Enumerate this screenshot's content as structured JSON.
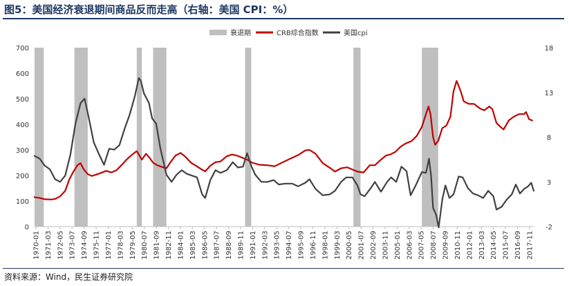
{
  "title": "图5：美国经济衰退期间商品反而走高（右轴：美国 CPI：%）",
  "source": "资料来源：Wind，民生证券研究院",
  "chart_data": {
    "type": "line",
    "left_axis": {
      "min": 0,
      "max": 700,
      "ticks": [
        "0",
        "100",
        "200",
        "300",
        "400",
        "500",
        "600",
        "700"
      ]
    },
    "right_axis": {
      "min": -2,
      "max": 18,
      "ticks": [
        "-2",
        "3",
        "8",
        "13",
        "18"
      ]
    },
    "x_ticks": [
      "1970-01",
      "1971-03",
      "1972-05",
      "1973-07",
      "1974-09",
      "1975-11",
      "1977-01",
      "1978-03",
      "1979-05",
      "1980-07",
      "1981-09",
      "1982-11",
      "1984-01",
      "1985-03",
      "1986-05",
      "1987-07",
      "1988-09",
      "1989-11",
      "1991-01",
      "1992-03",
      "1993-05",
      "1994-07",
      "1995-09",
      "1996-11",
      "1998-01",
      "1999-03",
      "2000-05",
      "2001-07",
      "2002-09",
      "2003-11",
      "2005-01",
      "2006-03",
      "2007-05",
      "2008-07",
      "2009-09",
      "2010-11",
      "2012-01",
      "2013-03",
      "2014-05",
      "2015-07",
      "2016-09",
      "2017-11"
    ],
    "x_range": [
      1970.0,
      2018.85
    ],
    "legend": [
      {
        "name": "衰退期",
        "color": "#bfbfbf",
        "kind": "bar"
      },
      {
        "name": "CRB综合指数",
        "color": "#c00000",
        "kind": "line"
      },
      {
        "name": "美国cpi",
        "color": "#404040",
        "kind": "line"
      }
    ],
    "recessions": [
      [
        1970.0,
        1970.9
      ],
      [
        1973.9,
        1975.2
      ],
      [
        1980.0,
        1980.5
      ],
      [
        1981.6,
        1982.9
      ],
      [
        1990.6,
        1991.2
      ],
      [
        2001.2,
        2001.9
      ],
      [
        2007.9,
        2009.5
      ]
    ],
    "series": [
      {
        "name": "CRB综合指数",
        "axis": "left",
        "color": "#c00000",
        "points": [
          [
            1970.0,
            115
          ],
          [
            1970.5,
            112
          ],
          [
            1971.0,
            107
          ],
          [
            1971.6,
            106
          ],
          [
            1972.0,
            108
          ],
          [
            1972.5,
            118
          ],
          [
            1973.0,
            140
          ],
          [
            1973.4,
            185
          ],
          [
            1973.8,
            215
          ],
          [
            1974.2,
            240
          ],
          [
            1974.5,
            248
          ],
          [
            1974.8,
            225
          ],
          [
            1975.2,
            205
          ],
          [
            1975.6,
            198
          ],
          [
            1976.0,
            203
          ],
          [
            1976.5,
            210
          ],
          [
            1977.0,
            218
          ],
          [
            1977.5,
            212
          ],
          [
            1978.0,
            220
          ],
          [
            1978.5,
            240
          ],
          [
            1979.0,
            262
          ],
          [
            1979.5,
            280
          ],
          [
            1980.0,
            295
          ],
          [
            1980.2,
            282
          ],
          [
            1980.5,
            262
          ],
          [
            1980.9,
            285
          ],
          [
            1981.2,
            272
          ],
          [
            1981.6,
            250
          ],
          [
            1982.0,
            240
          ],
          [
            1982.5,
            233
          ],
          [
            1982.9,
            228
          ],
          [
            1983.3,
            252
          ],
          [
            1983.8,
            278
          ],
          [
            1984.3,
            288
          ],
          [
            1984.8,
            272
          ],
          [
            1985.3,
            250
          ],
          [
            1985.8,
            238
          ],
          [
            1986.3,
            225
          ],
          [
            1986.7,
            216
          ],
          [
            1987.2,
            238
          ],
          [
            1987.7,
            252
          ],
          [
            1988.2,
            255
          ],
          [
            1988.8,
            275
          ],
          [
            1989.3,
            282
          ],
          [
            1989.8,
            278
          ],
          [
            1990.3,
            270
          ],
          [
            1990.8,
            262
          ],
          [
            1991.3,
            250
          ],
          [
            1992.0,
            242
          ],
          [
            1992.8,
            240
          ],
          [
            1993.5,
            236
          ],
          [
            1994.3,
            252
          ],
          [
            1995.0,
            265
          ],
          [
            1995.8,
            280
          ],
          [
            1996.5,
            298
          ],
          [
            1996.9,
            300
          ],
          [
            1997.5,
            285
          ],
          [
            1998.2,
            248
          ],
          [
            1998.9,
            230
          ],
          [
            1999.4,
            215
          ],
          [
            2000.0,
            228
          ],
          [
            2000.6,
            232
          ],
          [
            2001.0,
            225
          ],
          [
            2001.6,
            215
          ],
          [
            2002.2,
            212
          ],
          [
            2002.8,
            240
          ],
          [
            2003.3,
            240
          ],
          [
            2003.9,
            262
          ],
          [
            2004.4,
            278
          ],
          [
            2004.8,
            282
          ],
          [
            2005.3,
            292
          ],
          [
            2005.8,
            312
          ],
          [
            2006.3,
            325
          ],
          [
            2006.9,
            335
          ],
          [
            2007.4,
            355
          ],
          [
            2007.9,
            390
          ],
          [
            2008.3,
            440
          ],
          [
            2008.55,
            470
          ],
          [
            2008.75,
            440
          ],
          [
            2009.0,
            350
          ],
          [
            2009.2,
            320
          ],
          [
            2009.5,
            335
          ],
          [
            2009.9,
            385
          ],
          [
            2010.3,
            395
          ],
          [
            2010.7,
            430
          ],
          [
            2011.0,
            530
          ],
          [
            2011.3,
            570
          ],
          [
            2011.7,
            530
          ],
          [
            2012.0,
            490
          ],
          [
            2012.5,
            480
          ],
          [
            2013.0,
            480
          ],
          [
            2013.6,
            462
          ],
          [
            2014.0,
            455
          ],
          [
            2014.5,
            470
          ],
          [
            2014.8,
            460
          ],
          [
            2015.2,
            405
          ],
          [
            2015.6,
            390
          ],
          [
            2015.9,
            380
          ],
          [
            2016.4,
            415
          ],
          [
            2016.9,
            430
          ],
          [
            2017.4,
            440
          ],
          [
            2017.9,
            440
          ],
          [
            2018.1,
            448
          ],
          [
            2018.4,
            420
          ],
          [
            2018.7,
            415
          ]
        ]
      },
      {
        "name": "美国cpi",
        "axis": "right",
        "color": "#404040",
        "points": [
          [
            1970.0,
            5.9
          ],
          [
            1970.5,
            5.6
          ],
          [
            1971.0,
            4.8
          ],
          [
            1971.5,
            4.4
          ],
          [
            1972.0,
            3.3
          ],
          [
            1972.5,
            3.0
          ],
          [
            1973.0,
            3.7
          ],
          [
            1973.5,
            6.0
          ],
          [
            1974.0,
            9.5
          ],
          [
            1974.5,
            11.8
          ],
          [
            1974.9,
            12.3
          ],
          [
            1975.3,
            10.2
          ],
          [
            1975.8,
            7.4
          ],
          [
            1976.3,
            6.1
          ],
          [
            1976.8,
            4.9
          ],
          [
            1977.3,
            6.7
          ],
          [
            1977.8,
            6.6
          ],
          [
            1978.3,
            7.1
          ],
          [
            1978.8,
            8.9
          ],
          [
            1979.3,
            10.5
          ],
          [
            1979.8,
            12.5
          ],
          [
            1980.2,
            14.6
          ],
          [
            1980.4,
            14.3
          ],
          [
            1980.7,
            12.9
          ],
          [
            1981.2,
            11.8
          ],
          [
            1981.5,
            10.1
          ],
          [
            1981.9,
            9.5
          ],
          [
            1982.3,
            6.8
          ],
          [
            1982.9,
            3.8
          ],
          [
            1983.4,
            3.0
          ],
          [
            1983.9,
            3.8
          ],
          [
            1984.4,
            4.3
          ],
          [
            1984.9,
            3.9
          ],
          [
            1985.4,
            3.7
          ],
          [
            1985.9,
            3.5
          ],
          [
            1986.4,
            1.6
          ],
          [
            1986.7,
            1.2
          ],
          [
            1987.2,
            3.2
          ],
          [
            1987.7,
            4.3
          ],
          [
            1988.2,
            4.0
          ],
          [
            1988.8,
            4.3
          ],
          [
            1989.4,
            5.2
          ],
          [
            1989.9,
            4.6
          ],
          [
            1990.4,
            4.7
          ],
          [
            1990.8,
            6.2
          ],
          [
            1991.2,
            4.8
          ],
          [
            1991.6,
            3.8
          ],
          [
            1992.2,
            3.0
          ],
          [
            1992.8,
            3.0
          ],
          [
            1993.4,
            3.2
          ],
          [
            1993.9,
            2.7
          ],
          [
            1994.5,
            2.8
          ],
          [
            1995.2,
            2.8
          ],
          [
            1995.8,
            2.5
          ],
          [
            1996.5,
            2.9
          ],
          [
            1996.9,
            3.3
          ],
          [
            1997.5,
            2.2
          ],
          [
            1998.2,
            1.5
          ],
          [
            1998.9,
            1.6
          ],
          [
            1999.4,
            2.0
          ],
          [
            2000.0,
            3.0
          ],
          [
            2000.5,
            3.5
          ],
          [
            2001.1,
            3.5
          ],
          [
            2001.6,
            2.6
          ],
          [
            2001.9,
            1.6
          ],
          [
            2002.3,
            1.4
          ],
          [
            2002.9,
            2.3
          ],
          [
            2003.3,
            3.0
          ],
          [
            2003.9,
            1.9
          ],
          [
            2004.5,
            3.0
          ],
          [
            2004.9,
            3.5
          ],
          [
            2005.4,
            3.0
          ],
          [
            2005.9,
            4.7
          ],
          [
            2006.4,
            4.2
          ],
          [
            2006.8,
            1.5
          ],
          [
            2007.3,
            2.6
          ],
          [
            2007.9,
            4.1
          ],
          [
            2008.3,
            4.0
          ],
          [
            2008.6,
            5.6
          ],
          [
            2008.8,
            3.7
          ],
          [
            2009.0,
            0.1
          ],
          [
            2009.3,
            -0.7
          ],
          [
            2009.55,
            -2.1
          ],
          [
            2009.9,
            1.0
          ],
          [
            2010.2,
            2.6
          ],
          [
            2010.6,
            1.2
          ],
          [
            2011.0,
            1.6
          ],
          [
            2011.5,
            3.6
          ],
          [
            2011.9,
            3.5
          ],
          [
            2012.4,
            2.3
          ],
          [
            2012.9,
            1.7
          ],
          [
            2013.4,
            1.5
          ],
          [
            2013.9,
            1.2
          ],
          [
            2014.4,
            2.0
          ],
          [
            2014.9,
            1.4
          ],
          [
            2015.2,
            -0.1
          ],
          [
            2015.7,
            0.2
          ],
          [
            2016.2,
            1.0
          ],
          [
            2016.7,
            1.6
          ],
          [
            2017.1,
            2.7
          ],
          [
            2017.5,
            1.7
          ],
          [
            2017.9,
            2.2
          ],
          [
            2018.3,
            2.5
          ],
          [
            2018.6,
            2.9
          ],
          [
            2018.85,
            2.0
          ]
        ]
      }
    ]
  }
}
